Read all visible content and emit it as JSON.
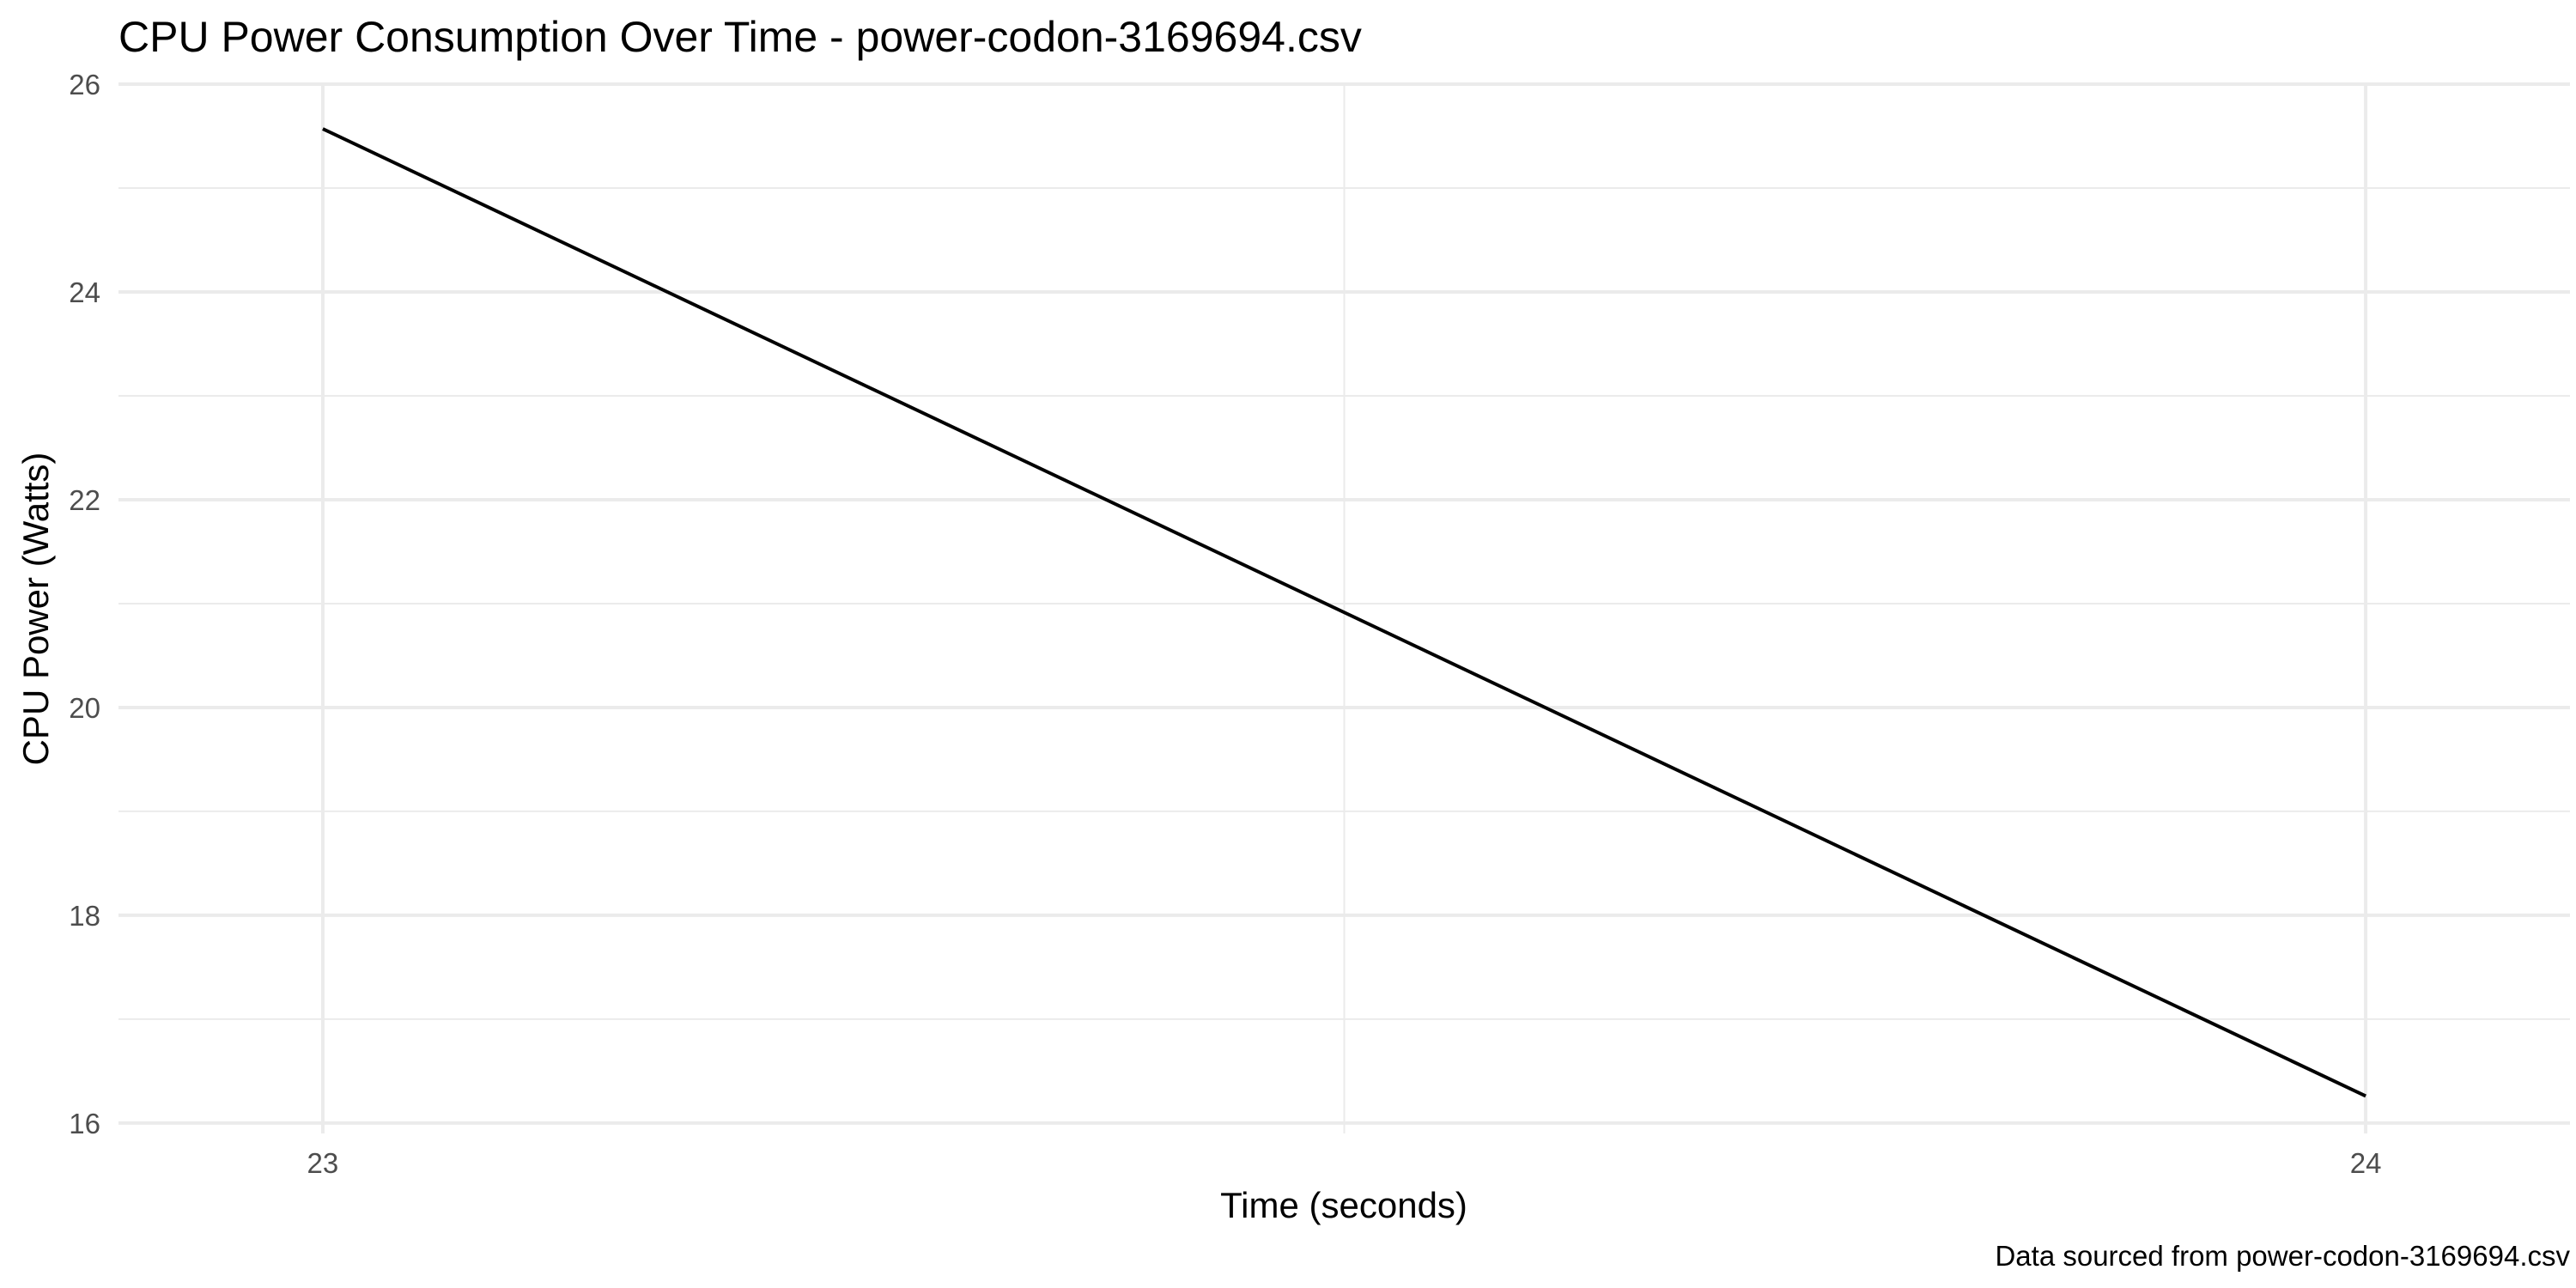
{
  "chart_data": {
    "type": "line",
    "title": "CPU Power Consumption Over Time - power-codon-3169694.csv",
    "xlabel": "Time (seconds)",
    "ylabel": "CPU Power (Watts)",
    "caption": "Data sourced from power-codon-3169694.csv",
    "xlim": [
      22.9,
      24.1
    ],
    "ylim": [
      15.9,
      26.0
    ],
    "x_ticks": [
      23,
      24
    ],
    "x_tick_labels": [
      "23",
      "24"
    ],
    "y_ticks": [
      16,
      18,
      20,
      22,
      24,
      26
    ],
    "y_tick_labels": [
      "16",
      "18",
      "20",
      "22",
      "24",
      "26"
    ],
    "grid": true,
    "series": [
      {
        "color": "#000000",
        "x": [
          23,
          24
        ],
        "y": [
          25.57,
          16.26
        ]
      }
    ]
  }
}
